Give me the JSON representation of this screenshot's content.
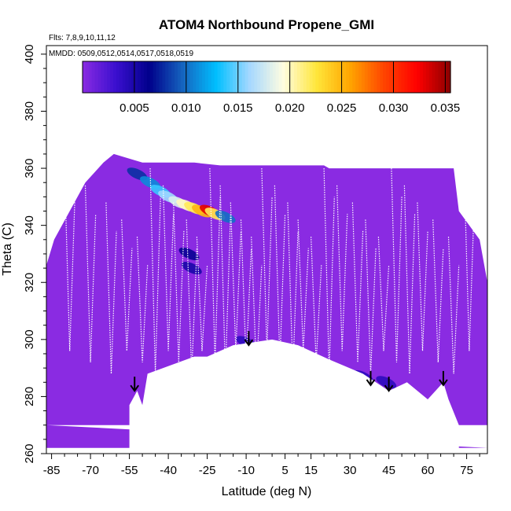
{
  "chart_data": {
    "type": "heatmap",
    "title": "ATOM4 Northbound Propene_GMI",
    "flights_note": "Flts: 7,8,9,10,11,12",
    "dates_note": "MMDD: 0509,0512,0514,0517,0518,0519",
    "xlabel": "Latitude (deg N)",
    "ylabel": "Theta (C)",
    "xlim": [
      -87,
      83
    ],
    "ylim": [
      260,
      403
    ],
    "x_ticks": [
      -85,
      -70,
      -55,
      -40,
      -25,
      -10,
      5,
      15,
      30,
      45,
      60,
      75
    ],
    "x_tick_labels": [
      "-85",
      "-70",
      "-55",
      "-40",
      "-25",
      "-10",
      "5",
      "15",
      "30",
      "45",
      "60",
      "75"
    ],
    "y_ticks": [
      260,
      280,
      300,
      320,
      340,
      360,
      380,
      400
    ],
    "y_tick_labels": [
      "260",
      "280",
      "300",
      "320",
      "340",
      "360",
      "380",
      "400"
    ],
    "colorbar": {
      "min": 0.0,
      "max": 0.0355,
      "ticks": [
        0.005,
        0.01,
        0.015,
        0.02,
        0.025,
        0.03,
        0.035
      ],
      "tick_labels": [
        "0.005",
        "0.010",
        "0.015",
        "0.020",
        "0.025",
        "0.030",
        "0.035"
      ],
      "colors": [
        "#8a2be2",
        "#3a0fcf",
        "#00008b",
        "#1565c0",
        "#00bfff",
        "#a6d8ff",
        "#fffde0",
        "#ffe63a",
        "#ffa500",
        "#ff4500",
        "#ff0000",
        "#8b0000"
      ]
    },
    "background_color": "#8a2be2",
    "track_color": "#ffffff",
    "ground_boundary": [
      {
        "lat": -55,
        "theta": 277
      },
      {
        "lat": -52,
        "theta": 282
      },
      {
        "lat": -50,
        "theta": 277
      },
      {
        "lat": -48,
        "theta": 288
      },
      {
        "lat": -30,
        "theta": 294
      },
      {
        "lat": -25,
        "theta": 294
      },
      {
        "lat": -15,
        "theta": 298
      },
      {
        "lat": 0,
        "theta": 300
      },
      {
        "lat": 10,
        "theta": 298
      },
      {
        "lat": 22,
        "theta": 293
      },
      {
        "lat": 35,
        "theta": 288
      },
      {
        "lat": 45,
        "theta": 282
      },
      {
        "lat": 52,
        "theta": 285
      },
      {
        "lat": 60,
        "theta": 279
      },
      {
        "lat": 64,
        "theta": 283
      },
      {
        "lat": 66,
        "theta": 285
      },
      {
        "lat": 68,
        "theta": 279
      },
      {
        "lat": 72,
        "theta": 270
      }
    ],
    "coverage_left_edge": [
      {
        "lat": -87,
        "theta": 326
      },
      {
        "lat": -84,
        "theta": 335
      },
      {
        "lat": -78,
        "theta": 345
      },
      {
        "lat": -72,
        "theta": 355
      },
      {
        "lat": -65,
        "theta": 362
      },
      {
        "lat": -61,
        "theta": 365
      }
    ],
    "coverage_top": [
      {
        "lat": -61,
        "theta": 365
      },
      {
        "lat": -50,
        "theta": 362
      },
      {
        "lat": -30,
        "theta": 362
      },
      {
        "lat": -20,
        "theta": 361
      },
      {
        "lat": 20,
        "theta": 361
      },
      {
        "lat": 22,
        "theta": 360
      },
      {
        "lat": 70,
        "theta": 360
      }
    ],
    "coverage_right_edge": [
      {
        "lat": 70,
        "theta": 360
      },
      {
        "lat": 72,
        "theta": 345
      },
      {
        "lat": 80,
        "theta": 335
      },
      {
        "lat": 83,
        "theta": 320
      },
      {
        "lat": 83,
        "theta": 270
      }
    ],
    "high_values": [
      {
        "lat": -52,
        "theta": 358,
        "value": 0.008
      },
      {
        "lat": -47,
        "theta": 355,
        "value": 0.011
      },
      {
        "lat": -43,
        "theta": 352,
        "value": 0.014
      },
      {
        "lat": -40,
        "theta": 350,
        "value": 0.016
      },
      {
        "lat": -36,
        "theta": 348,
        "value": 0.018
      },
      {
        "lat": -33,
        "theta": 347,
        "value": 0.02
      },
      {
        "lat": -30,
        "theta": 346,
        "value": 0.022
      },
      {
        "lat": -27,
        "theta": 345,
        "value": 0.025
      },
      {
        "lat": -24,
        "theta": 345,
        "value": 0.033
      },
      {
        "lat": -22,
        "theta": 344,
        "value": 0.022
      },
      {
        "lat": -18,
        "theta": 343,
        "value": 0.01
      },
      {
        "lat": -32,
        "theta": 330,
        "value": 0.006
      },
      {
        "lat": -31,
        "theta": 325,
        "value": 0.005
      },
      {
        "lat": -10,
        "theta": 299,
        "value": 0.004
      },
      {
        "lat": 35,
        "theta": 287,
        "value": 0.004
      },
      {
        "lat": 44,
        "theta": 285,
        "value": 0.004
      }
    ],
    "arrows": [
      {
        "lat": -53,
        "theta": 282
      },
      {
        "lat": -9,
        "theta": 298
      },
      {
        "lat": 38,
        "theta": 284
      },
      {
        "lat": 45,
        "theta": 282
      },
      {
        "lat": 66,
        "theta": 284
      }
    ]
  }
}
